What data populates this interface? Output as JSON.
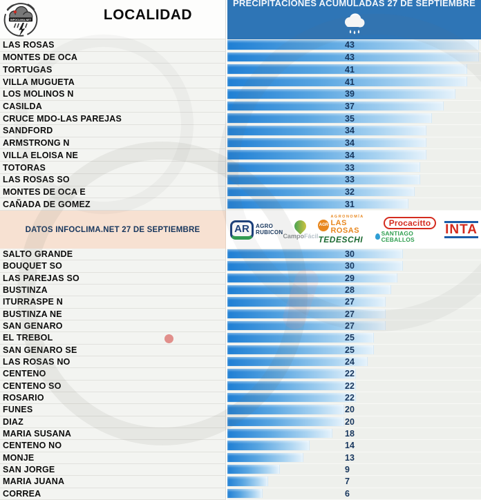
{
  "header": {
    "localidad_label": "LOCALIDAD",
    "chart_title": "PRECIPITACIONES ACUMULADAS 27 DE SEPTIEMBRE",
    "logo_text": "INFOCLIMA.NET"
  },
  "divider": {
    "left_label": "DATOS INFOCLIMA.NET 27 DE SEPTIEMBRE",
    "sponsors": {
      "agro_rubicon": {
        "badge": "AR",
        "line1": "AGRO",
        "line2": "RUBICON"
      },
      "campofacil": {
        "part1": "Campo",
        "part2": "Fácil"
      },
      "tedeschi": {
        "badge": "AGR",
        "top": "AGRONOMÍA",
        "mid": "LAS ROSAS",
        "bottom": "TEDESCHI"
      },
      "procacitto": {
        "name": "Procacitto",
        "sub": "SANTIAGO CEBALLOS"
      },
      "inta": {
        "name": "INTA"
      }
    }
  },
  "chart_data": {
    "type": "bar",
    "orientation": "horizontal",
    "title": "PRECIPITACIONES ACUMULADAS 27 DE SEPTIEMBRE",
    "subtitle": "DATOS INFOCLIMA.NET 27 DE SEPTIEMBRE",
    "xlabel": "",
    "ylabel": "LOCALIDAD",
    "xlim": [
      0,
      43
    ],
    "grid": false,
    "legend": "none",
    "top_section_count": 14,
    "categories": [
      "LAS ROSAS",
      "MONTES DE OCA",
      "TORTUGAS",
      "VILLA MUGUETA",
      "LOS MOLINOS N",
      "CASILDA",
      "CRUCE MDO-LAS PAREJAS",
      "SANDFORD",
      "ARMSTRONG N",
      "VILLA ELOISA NE",
      "TOTORAS",
      "LAS ROSAS SO",
      "MONTES DE OCA E",
      "CAÑADA DE GOMEZ",
      "SALTO GRANDE",
      "BOUQUET SO",
      "LAS PAREJAS SO",
      "BUSTINZA",
      "ITURRASPE N",
      "BUSTINZA NE",
      "SAN GENARO",
      "EL TREBOL",
      "SAN GENARO SE",
      "LAS ROSAS NO",
      "CENTENO",
      "CENTENO SO",
      "ROSARIO",
      "FUNES",
      "DIAZ",
      "MARIA SUSANA",
      "CENTENO NO",
      "MONJE",
      "SAN JORGE",
      "MARIA JUANA",
      "CORREA"
    ],
    "values": [
      43,
      43,
      41,
      41,
      39,
      37,
      35,
      34,
      34,
      34,
      33,
      33,
      32,
      31,
      30,
      30,
      29,
      28,
      27,
      27,
      27,
      25,
      25,
      24,
      22,
      22,
      22,
      20,
      20,
      18,
      14,
      13,
      9,
      7,
      6
    ]
  },
  "colors": {
    "header_blue": "#2e75b6",
    "bar_gradient_start": "#1f7fd4",
    "bar_gradient_end": "#e5f2fb",
    "value_text": "#17365d",
    "divider_bg": "#f7e1d2",
    "chart_bg": "#eef0ec",
    "left_column_bg": "#f3f4f1"
  }
}
